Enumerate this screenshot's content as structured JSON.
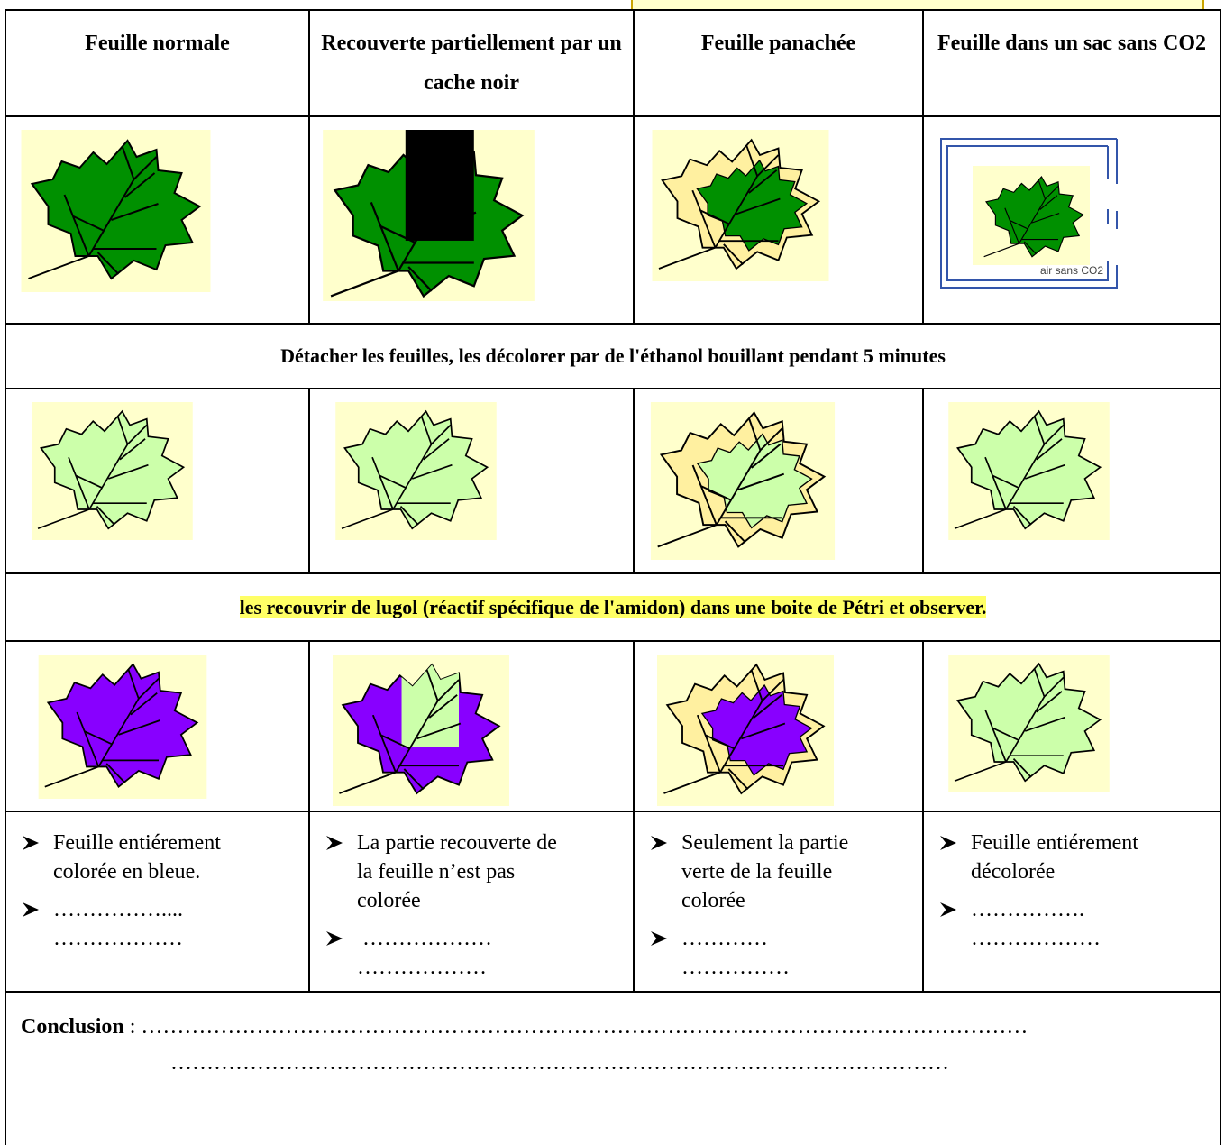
{
  "table": {
    "headers": [
      "Feuille normale",
      "Recouverte partiellement par un cache noir",
      "Feuille panachée",
      "Feuille dans un sac sans CO2"
    ],
    "bag_label": "air sans CO2",
    "step_1": "Détacher les feuilles, les décolorer par de l'éthanol bouillant pendant 5 minutes",
    "step_2": "les recouvrir de lugol (réactif spécifique de l'amidon) dans une boite de Pétri et observer.",
    "observations": [
      [
        [
          "Feuille entiérement",
          "colorée en bleue."
        ],
        [
          "……………....",
          "………………"
        ]
      ],
      [
        [
          "La partie recouverte de",
          "la feuille n’est pas",
          "colorée"
        ],
        [
          " ………………",
          "………………"
        ]
      ],
      [
        [
          "Seulement la partie",
          "verte de la feuille",
          "colorée"
        ],
        [
          "…………",
          "……………"
        ]
      ],
      [
        [
          "Feuille entiérement",
          "décolorée"
        ],
        [
          "…………….",
          "………………"
        ]
      ]
    ]
  },
  "conclusion": {
    "label": "Conclusion",
    "line_1": ": ……………………………………………………………………………………………………………",
    "line_2": "………………………………………………………………………………………………"
  }
}
